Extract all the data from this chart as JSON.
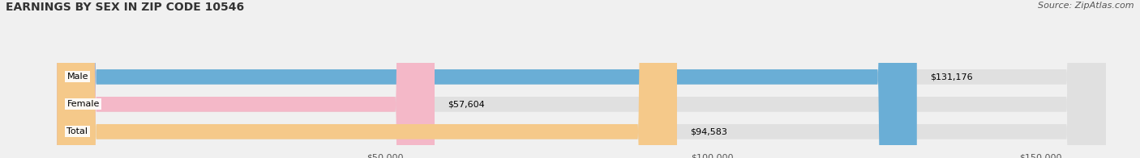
{
  "title": "EARNINGS BY SEX IN ZIP CODE 10546",
  "source": "Source: ZipAtlas.com",
  "categories": [
    "Male",
    "Female",
    "Total"
  ],
  "values": [
    131176,
    57604,
    94583
  ],
  "labels": [
    "$131,176",
    "$57,604",
    "$94,583"
  ],
  "bar_colors": [
    "#6aaed6",
    "#f4b8c8",
    "#f5c98a"
  ],
  "background_color": "#f0f0f0",
  "bar_bg_color": "#e0e0e0",
  "xlim": [
    0,
    160000
  ],
  "xticks": [
    50000,
    100000,
    150000
  ],
  "xtick_labels": [
    "$50,000",
    "$100,000",
    "$150,000"
  ],
  "title_fontsize": 10,
  "source_fontsize": 8,
  "label_fontsize": 8,
  "category_fontsize": 8,
  "bar_height": 0.55,
  "figsize": [
    14.06,
    1.96
  ],
  "dpi": 100
}
